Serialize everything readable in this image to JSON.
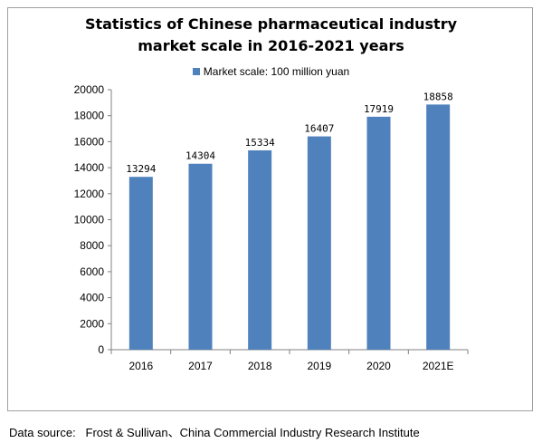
{
  "chart_data": {
    "type": "bar",
    "title_lines": [
      "Statistics of Chinese pharmaceutical industry",
      "market scale in 2016-2021 years"
    ],
    "legend": [
      {
        "name": "Market scale: 100 million yuan",
        "color": "#4f81bd"
      }
    ],
    "categories": [
      "2016",
      "2017",
      "2018",
      "2019",
      "2020",
      "2021E"
    ],
    "series": [
      {
        "name": "Market scale: 100 million yuan",
        "values": [
          13294,
          14304,
          15334,
          16407,
          17919,
          18858
        ]
      }
    ],
    "data_labels": [
      "13294",
      "14304",
      "15334",
      "16407",
      "17919",
      "18858"
    ],
    "y_ticks": [
      "0",
      "2000",
      "4000",
      "6000",
      "8000",
      "10000",
      "12000",
      "14000",
      "16000",
      "18000",
      "20000"
    ],
    "ylim": [
      0,
      20000
    ],
    "legend_position": "top",
    "grid": false
  },
  "source_text": "Data source:   Frost & Sullivan、China Commercial Industry Research Institute"
}
